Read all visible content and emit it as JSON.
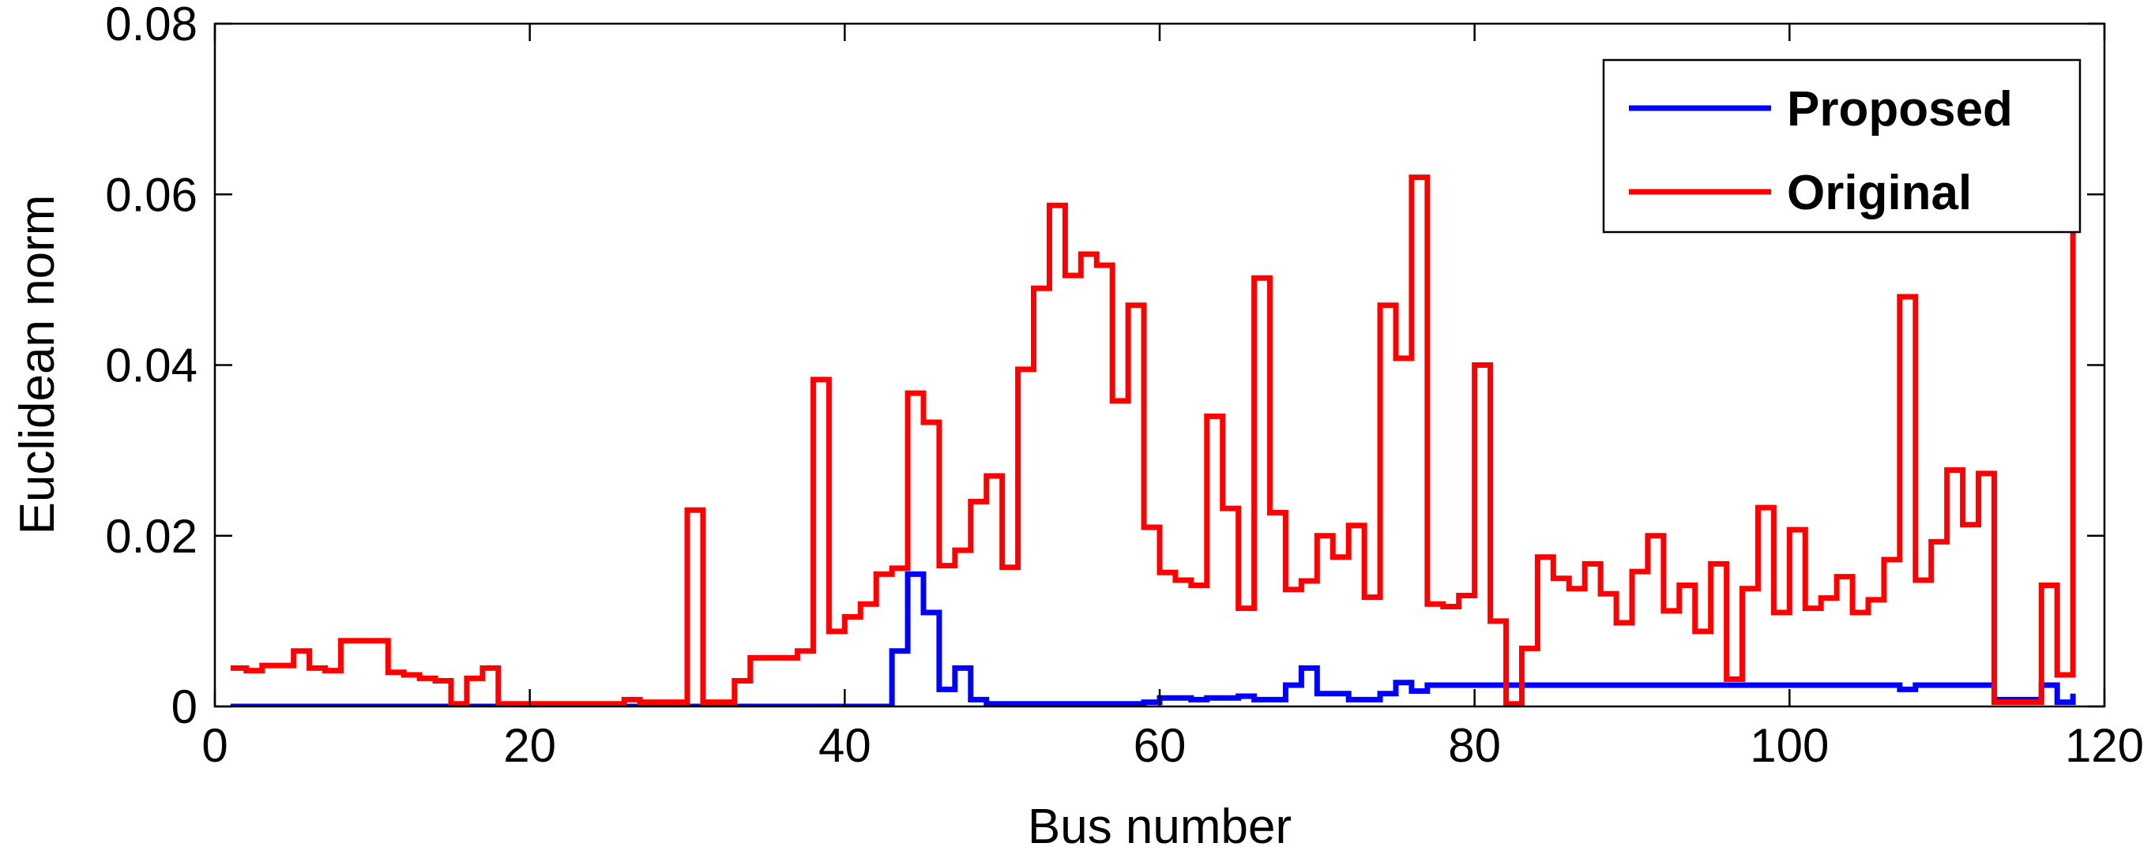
{
  "chart_data": {
    "type": "line",
    "step": true,
    "xlabel": "Bus number",
    "ylabel": "Euclidean norm",
    "xlim": [
      0,
      120
    ],
    "ylim": [
      0,
      0.08
    ],
    "xticks": [
      0,
      20,
      40,
      60,
      80,
      100,
      120
    ],
    "yticks": [
      0,
      0.02,
      0.04,
      0.06,
      0.08
    ],
    "xtick_labels": [
      "0",
      "20",
      "40",
      "60",
      "80",
      "100",
      "120"
    ],
    "ytick_labels": [
      "0",
      "0.02",
      "0.04",
      "0.06",
      "0.08"
    ],
    "grid": false,
    "legend": {
      "position": "top-right"
    },
    "x": [
      1,
      2,
      3,
      4,
      5,
      6,
      7,
      8,
      9,
      10,
      11,
      12,
      13,
      14,
      15,
      16,
      17,
      18,
      19,
      20,
      21,
      22,
      23,
      24,
      25,
      26,
      27,
      28,
      29,
      30,
      31,
      32,
      33,
      34,
      35,
      36,
      37,
      38,
      39,
      40,
      41,
      42,
      43,
      44,
      45,
      46,
      47,
      48,
      49,
      50,
      51,
      52,
      53,
      54,
      55,
      56,
      57,
      58,
      59,
      60,
      61,
      62,
      63,
      64,
      65,
      66,
      67,
      68,
      69,
      70,
      71,
      72,
      73,
      74,
      75,
      76,
      77,
      78,
      79,
      80,
      81,
      82,
      83,
      84,
      85,
      86,
      87,
      88,
      89,
      90,
      91,
      92,
      93,
      94,
      95,
      96,
      97,
      98,
      99,
      100,
      101,
      102,
      103,
      104,
      105,
      106,
      107,
      108,
      109,
      110,
      111,
      112,
      113,
      114,
      115,
      116,
      117,
      118
    ],
    "series": [
      {
        "name": "Proposed",
        "color": "#0000ff",
        "values": [
          0,
          0,
          0,
          0,
          0,
          0,
          0,
          0,
          0,
          0,
          0,
          0,
          0,
          0,
          0,
          0,
          0,
          0,
          0,
          0,
          0,
          0,
          0,
          0,
          0,
          0,
          0,
          0,
          0,
          0,
          0,
          0,
          0,
          0,
          0,
          0,
          0,
          0,
          0,
          0,
          0,
          0,
          0.0065,
          0.0155,
          0.011,
          0.002,
          0.0045,
          0.0008,
          0.0003,
          0.0003,
          0.0003,
          0.0003,
          0.0003,
          0.0003,
          0.0003,
          0.0003,
          0.0003,
          0.0003,
          0.0005,
          0.001,
          0.001,
          0.0008,
          0.001,
          0.001,
          0.0012,
          0.0008,
          0.0008,
          0.0025,
          0.0045,
          0.0015,
          0.0015,
          0.0008,
          0.0008,
          0.0015,
          0.0028,
          0.0018,
          0.0025,
          0.0025,
          0.0025,
          0.0025,
          0.0025,
          0.0025,
          0.0025,
          0.0025,
          0.0025,
          0.0025,
          0.0025,
          0.0025,
          0.0025,
          0.0025,
          0.0025,
          0.0025,
          0.0025,
          0.0025,
          0.0025,
          0.0025,
          0.0025,
          0.0025,
          0.0025,
          0.0025,
          0.0025,
          0.0025,
          0.0025,
          0.0025,
          0.0025,
          0.0025,
          0.002,
          0.0025,
          0.0025,
          0.0025,
          0.0025,
          0.0025,
          0.0008,
          0.0008,
          0.0008,
          0.0025,
          0.0005,
          0.0015
        ]
      },
      {
        "name": "Original",
        "color": "#ff0000",
        "values": [
          0.0045,
          0.0042,
          0.0048,
          0.0048,
          0.0065,
          0.0045,
          0.0042,
          0.0077,
          0.0077,
          0.0077,
          0.004,
          0.0037,
          0.0033,
          0.003,
          0.0003,
          0.0033,
          0.0045,
          0.0003,
          0.0003,
          0.0003,
          0.0003,
          0.0003,
          0.0003,
          0.0003,
          0.0003,
          0.0008,
          0.0005,
          0.0005,
          0.0005,
          0.023,
          0.0005,
          0.0005,
          0.003,
          0.0057,
          0.0057,
          0.0057,
          0.0065,
          0.0383,
          0.0088,
          0.0105,
          0.012,
          0.0155,
          0.0162,
          0.0367,
          0.0333,
          0.0165,
          0.0183,
          0.024,
          0.027,
          0.0163,
          0.0395,
          0.049,
          0.0587,
          0.0505,
          0.053,
          0.0517,
          0.0358,
          0.047,
          0.021,
          0.0157,
          0.0148,
          0.0142,
          0.034,
          0.0232,
          0.0115,
          0.0502,
          0.0227,
          0.0137,
          0.0147,
          0.02,
          0.0175,
          0.0212,
          0.0128,
          0.047,
          0.0408,
          0.062,
          0.012,
          0.0117,
          0.013,
          0.04,
          0.01,
          0.0003,
          0.0068,
          0.0175,
          0.015,
          0.0138,
          0.0167,
          0.0132,
          0.0098,
          0.0158,
          0.02,
          0.0112,
          0.0142,
          0.0088,
          0.0167,
          0.0032,
          0.0138,
          0.0233,
          0.011,
          0.0207,
          0.0115,
          0.0127,
          0.0152,
          0.011,
          0.0125,
          0.0172,
          0.048,
          0.0148,
          0.0193,
          0.0277,
          0.0213,
          0.0273,
          0.0005,
          0.0005,
          0.0005,
          0.0142,
          0.0037,
          0.057
        ]
      }
    ]
  }
}
